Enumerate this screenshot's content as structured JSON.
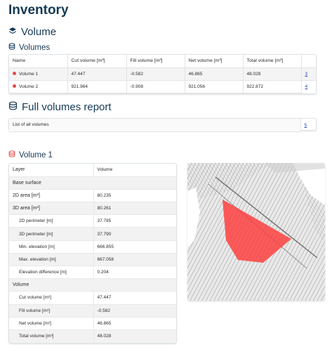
{
  "page_title": "Inventory",
  "volume_section": {
    "title": "Volume"
  },
  "volumes": {
    "title": "Volumes",
    "columns": [
      "Name",
      "Cut volume [m³]",
      "Fill volume [m³]",
      "Net volume [m³]",
      "Total volume [m³]"
    ],
    "rows": [
      {
        "name": "Volume 1",
        "cut": "47.447",
        "fill": "-0.582",
        "net": "46.865",
        "total": "48.028",
        "link": "3"
      },
      {
        "name": "Volume 2",
        "cut": "921.964",
        "fill": "-0.908",
        "net": "921.056",
        "total": "922.872",
        "link": "4"
      }
    ],
    "dot_color": "#e64a4a"
  },
  "full_report": {
    "title": "Full volumes report",
    "item_label": "List of all volumes",
    "link": "5"
  },
  "volume1": {
    "title": "Volume 1",
    "rows": [
      {
        "label": "Layer",
        "value": "Volume"
      },
      {
        "label": "Base surface",
        "value": ""
      },
      {
        "label": "2D area [m²]",
        "value": "80.235"
      },
      {
        "label": "3D area [m²]",
        "value": "80.261"
      },
      {
        "label": "2D perimeter [m]",
        "value": "37.785"
      },
      {
        "label": "3D perimeter [m]",
        "value": "37.790"
      },
      {
        "label": "Min. elevation [m]",
        "value": "666.855"
      },
      {
        "label": "Max. elevation [m]",
        "value": "667.058"
      },
      {
        "label": "Elevation difference [m]",
        "value": "0.204"
      },
      {
        "label": "Volume",
        "value": ""
      },
      {
        "label": "Cut volume [m³]",
        "value": "47.447"
      },
      {
        "label": "Fill volume [m³]",
        "value": "-0.582"
      },
      {
        "label": "Net volume [m³]",
        "value": "46.865"
      },
      {
        "label": "Total volume [m³]",
        "value": "48.028"
      }
    ]
  },
  "colors": {
    "heading": "#163a55",
    "accent_red": "#e64a4a",
    "link": "#1a3fbf"
  },
  "icons": [
    "layers-icon",
    "database-icon",
    "database-icon-red"
  ]
}
